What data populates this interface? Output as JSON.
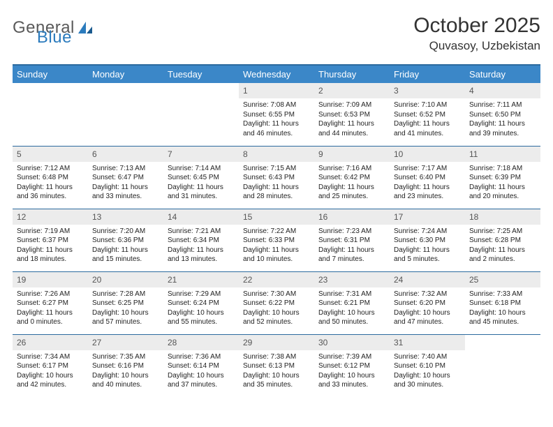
{
  "logo": {
    "text1": "General",
    "text2": "Blue"
  },
  "title": "October 2025",
  "location": "Quvasoy, Uzbekistan",
  "colors": {
    "header_bg": "#3b87c8",
    "header_border": "#2b6a9e",
    "daynum_bg": "#ececec",
    "text": "#333333"
  },
  "weekdays": [
    "Sunday",
    "Monday",
    "Tuesday",
    "Wednesday",
    "Thursday",
    "Friday",
    "Saturday"
  ],
  "weeks": [
    [
      null,
      null,
      null,
      {
        "n": "1",
        "sr": "7:08 AM",
        "ss": "6:55 PM",
        "dl": "11 hours and 46 minutes."
      },
      {
        "n": "2",
        "sr": "7:09 AM",
        "ss": "6:53 PM",
        "dl": "11 hours and 44 minutes."
      },
      {
        "n": "3",
        "sr": "7:10 AM",
        "ss": "6:52 PM",
        "dl": "11 hours and 41 minutes."
      },
      {
        "n": "4",
        "sr": "7:11 AM",
        "ss": "6:50 PM",
        "dl": "11 hours and 39 minutes."
      }
    ],
    [
      {
        "n": "5",
        "sr": "7:12 AM",
        "ss": "6:48 PM",
        "dl": "11 hours and 36 minutes."
      },
      {
        "n": "6",
        "sr": "7:13 AM",
        "ss": "6:47 PM",
        "dl": "11 hours and 33 minutes."
      },
      {
        "n": "7",
        "sr": "7:14 AM",
        "ss": "6:45 PM",
        "dl": "11 hours and 31 minutes."
      },
      {
        "n": "8",
        "sr": "7:15 AM",
        "ss": "6:43 PM",
        "dl": "11 hours and 28 minutes."
      },
      {
        "n": "9",
        "sr": "7:16 AM",
        "ss": "6:42 PM",
        "dl": "11 hours and 25 minutes."
      },
      {
        "n": "10",
        "sr": "7:17 AM",
        "ss": "6:40 PM",
        "dl": "11 hours and 23 minutes."
      },
      {
        "n": "11",
        "sr": "7:18 AM",
        "ss": "6:39 PM",
        "dl": "11 hours and 20 minutes."
      }
    ],
    [
      {
        "n": "12",
        "sr": "7:19 AM",
        "ss": "6:37 PM",
        "dl": "11 hours and 18 minutes."
      },
      {
        "n": "13",
        "sr": "7:20 AM",
        "ss": "6:36 PM",
        "dl": "11 hours and 15 minutes."
      },
      {
        "n": "14",
        "sr": "7:21 AM",
        "ss": "6:34 PM",
        "dl": "11 hours and 13 minutes."
      },
      {
        "n": "15",
        "sr": "7:22 AM",
        "ss": "6:33 PM",
        "dl": "11 hours and 10 minutes."
      },
      {
        "n": "16",
        "sr": "7:23 AM",
        "ss": "6:31 PM",
        "dl": "11 hours and 7 minutes."
      },
      {
        "n": "17",
        "sr": "7:24 AM",
        "ss": "6:30 PM",
        "dl": "11 hours and 5 minutes."
      },
      {
        "n": "18",
        "sr": "7:25 AM",
        "ss": "6:28 PM",
        "dl": "11 hours and 2 minutes."
      }
    ],
    [
      {
        "n": "19",
        "sr": "7:26 AM",
        "ss": "6:27 PM",
        "dl": "11 hours and 0 minutes."
      },
      {
        "n": "20",
        "sr": "7:28 AM",
        "ss": "6:25 PM",
        "dl": "10 hours and 57 minutes."
      },
      {
        "n": "21",
        "sr": "7:29 AM",
        "ss": "6:24 PM",
        "dl": "10 hours and 55 minutes."
      },
      {
        "n": "22",
        "sr": "7:30 AM",
        "ss": "6:22 PM",
        "dl": "10 hours and 52 minutes."
      },
      {
        "n": "23",
        "sr": "7:31 AM",
        "ss": "6:21 PM",
        "dl": "10 hours and 50 minutes."
      },
      {
        "n": "24",
        "sr": "7:32 AM",
        "ss": "6:20 PM",
        "dl": "10 hours and 47 minutes."
      },
      {
        "n": "25",
        "sr": "7:33 AM",
        "ss": "6:18 PM",
        "dl": "10 hours and 45 minutes."
      }
    ],
    [
      {
        "n": "26",
        "sr": "7:34 AM",
        "ss": "6:17 PM",
        "dl": "10 hours and 42 minutes."
      },
      {
        "n": "27",
        "sr": "7:35 AM",
        "ss": "6:16 PM",
        "dl": "10 hours and 40 minutes."
      },
      {
        "n": "28",
        "sr": "7:36 AM",
        "ss": "6:14 PM",
        "dl": "10 hours and 37 minutes."
      },
      {
        "n": "29",
        "sr": "7:38 AM",
        "ss": "6:13 PM",
        "dl": "10 hours and 35 minutes."
      },
      {
        "n": "30",
        "sr": "7:39 AM",
        "ss": "6:12 PM",
        "dl": "10 hours and 33 minutes."
      },
      {
        "n": "31",
        "sr": "7:40 AM",
        "ss": "6:10 PM",
        "dl": "10 hours and 30 minutes."
      },
      null
    ]
  ],
  "labels": {
    "sunrise": "Sunrise: ",
    "sunset": "Sunset: ",
    "daylight": "Daylight: "
  }
}
